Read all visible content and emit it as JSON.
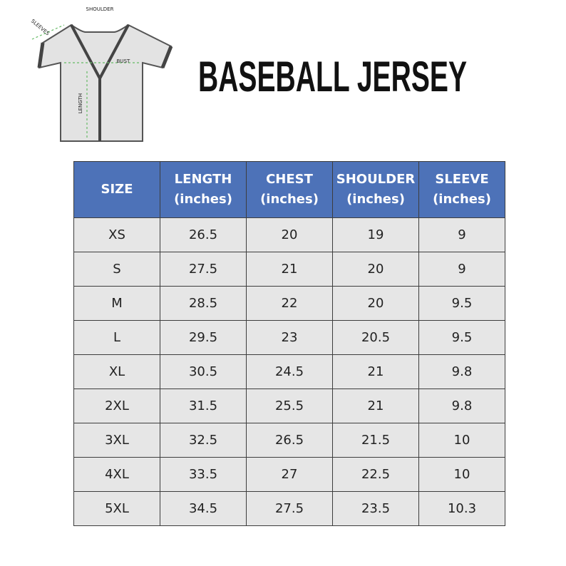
{
  "diagram": {
    "labels": {
      "shoulder": "SHOULDER",
      "sleeves": "SLEEVES",
      "bust": "BUST",
      "length": "LENGTH"
    }
  },
  "header": {
    "title": "BASEBALL JERSEY"
  },
  "table": {
    "columns": [
      {
        "name": "SIZE"
      },
      {
        "name": "LENGTH",
        "unit": "(inches)"
      },
      {
        "name": "CHEST",
        "unit": "(inches)"
      },
      {
        "name": "SHOULDER",
        "unit": "(inches)"
      },
      {
        "name": "SLEEVE",
        "unit": "(inches)"
      }
    ],
    "rows": [
      [
        "XS",
        "26.5",
        "20",
        "19",
        "9"
      ],
      [
        "S",
        "27.5",
        "21",
        "20",
        "9"
      ],
      [
        "M",
        "28.5",
        "22",
        "20",
        "9.5"
      ],
      [
        "L",
        "29.5",
        "23",
        "20.5",
        "9.5"
      ],
      [
        "XL",
        "30.5",
        "24.5",
        "21",
        "9.8"
      ],
      [
        "2XL",
        "31.5",
        "25.5",
        "21",
        "9.8"
      ],
      [
        "3XL",
        "32.5",
        "26.5",
        "21.5",
        "10"
      ],
      [
        "4XL",
        "33.5",
        "27",
        "22.5",
        "10"
      ],
      [
        "5XL",
        "34.5",
        "27.5",
        "23.5",
        "10.3"
      ]
    ]
  }
}
